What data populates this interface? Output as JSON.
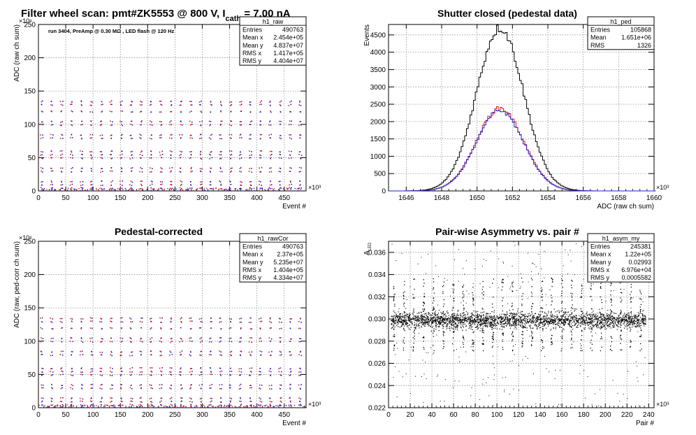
{
  "colors": {
    "black": "#000000",
    "red": "#e31a1c",
    "blue": "#1f1fcc",
    "grid": "#7f7f7f"
  },
  "chart_data": [
    {
      "id": "p1",
      "type": "scatter",
      "title": "Filter wheel scan: pmt#ZK5553 @   800 V, I",
      "title_sub": "cath",
      "title_tail": " = 7.00 nA",
      "annotation": "run 3404, PreAmp @ 0.30 MΩ , LED flash @  120 Hz",
      "xlabel": "Event #",
      "ylabel": "ADC (raw ch sum)",
      "x_exponent": "×10³",
      "y_exponent": "×10⁶",
      "xlim": [
        0,
        490
      ],
      "ylim": [
        0,
        250
      ],
      "xticks": [
        0,
        50,
        100,
        150,
        200,
        250,
        300,
        350,
        400,
        450
      ],
      "yticks": [
        0,
        50,
        100,
        150,
        200,
        250
      ],
      "grid": true,
      "stats": {
        "name": "h1_raw",
        "rows": [
          [
            "Entries",
            "490763"
          ],
          [
            "Mean x",
            "2.454e+05"
          ],
          [
            "Mean y",
            "4.837e+07"
          ],
          [
            "RMS x",
            "1.417e+05"
          ],
          [
            "RMS y",
            "4.404e+07"
          ]
        ]
      },
      "pattern": {
        "period": 18.2,
        "levels": [
          135,
          130,
          120,
          105,
          100,
          85,
          80,
          60,
          55,
          50,
          35,
          30,
          15,
          10,
          5
        ],
        "series": [
          "red",
          "blue"
        ]
      }
    },
    {
      "id": "p2",
      "type": "histogram",
      "title": "Shutter closed (pedestal data)",
      "xlabel": "ADC (raw ch sum)",
      "ylabel": "Events",
      "x_exponent": "×10³",
      "xlim": [
        1645,
        1660
      ],
      "ylim": [
        0,
        4800
      ],
      "xticks": [
        1646,
        1648,
        1650,
        1652,
        1654,
        1656,
        1658,
        1660
      ],
      "yticks": [
        0,
        500,
        1000,
        1500,
        2000,
        2500,
        3000,
        3500,
        4000,
        4500
      ],
      "grid": true,
      "stats": {
        "name": "h1_ped",
        "rows": [
          [
            "Entries",
            "105868"
          ],
          [
            "Mean",
            "1.651e+06"
          ],
          [
            "RMS",
            "1326"
          ]
        ]
      },
      "series": [
        {
          "color": "black",
          "mean": 1651.3,
          "sigma": 1.33,
          "peak": 4700
        },
        {
          "color": "red",
          "mean": 1651.3,
          "sigma": 1.33,
          "peak": 2380
        },
        {
          "color": "blue",
          "mean": 1651.3,
          "sigma": 1.33,
          "peak": 2320
        }
      ]
    },
    {
      "id": "p3",
      "type": "scatter",
      "title": "Pedestal-corrected",
      "xlabel": "Event #",
      "ylabel": "ADC (raw, ped-corr ch sum)",
      "x_exponent": "×10³",
      "y_exponent": "×10⁶",
      "xlim": [
        0,
        490
      ],
      "ylim": [
        0,
        250
      ],
      "xticks": [
        0,
        50,
        100,
        150,
        200,
        250,
        300,
        350,
        400,
        450
      ],
      "yticks": [
        0,
        50,
        100,
        150,
        200,
        250
      ],
      "grid": true,
      "stats": {
        "name": "h1_rawCor",
        "rows": [
          [
            "Entries",
            "490763"
          ],
          [
            "Mean x",
            "2.37e+05"
          ],
          [
            "Mean y",
            "5.235e+07"
          ],
          [
            "RMS x",
            "1.404e+05"
          ],
          [
            "RMS y",
            "4.334e+07"
          ]
        ]
      },
      "pattern": {
        "period": 18.2,
        "levels": [
          135,
          130,
          120,
          105,
          100,
          85,
          80,
          60,
          55,
          50,
          35,
          30,
          15,
          10,
          5
        ],
        "series": [
          "red",
          "blue"
        ]
      }
    },
    {
      "id": "p4",
      "type": "scatter",
      "title": "Pair-wise Asymmetry vs. pair #",
      "xlabel": "Pair #",
      "ylabel": "A_LED",
      "x_exponent": "×10³",
      "xlim": [
        0,
        245
      ],
      "ylim": [
        0.022,
        0.037
      ],
      "xticks": [
        0,
        20,
        40,
        60,
        80,
        100,
        120,
        140,
        160,
        180,
        200,
        220,
        240
      ],
      "yticks": [
        0.022,
        0.024,
        0.026,
        0.028,
        0.03,
        0.032,
        0.034,
        0.036
      ],
      "grid": true,
      "stats": {
        "name": "h1_asym_my",
        "rows": [
          [
            "Entries",
            "245381"
          ],
          [
            "Mean x",
            "1.22e+05"
          ],
          [
            "Mean y",
            "0.02993"
          ],
          [
            "RMS x",
            "6.976e+04"
          ],
          [
            "RMS y",
            "0.0005582"
          ]
        ]
      },
      "band": {
        "center": 0.02993,
        "halfwidth": 0.0006,
        "spike_period": 9.1,
        "spike_up": 0.0032,
        "spike_down": 0.0022
      }
    }
  ]
}
